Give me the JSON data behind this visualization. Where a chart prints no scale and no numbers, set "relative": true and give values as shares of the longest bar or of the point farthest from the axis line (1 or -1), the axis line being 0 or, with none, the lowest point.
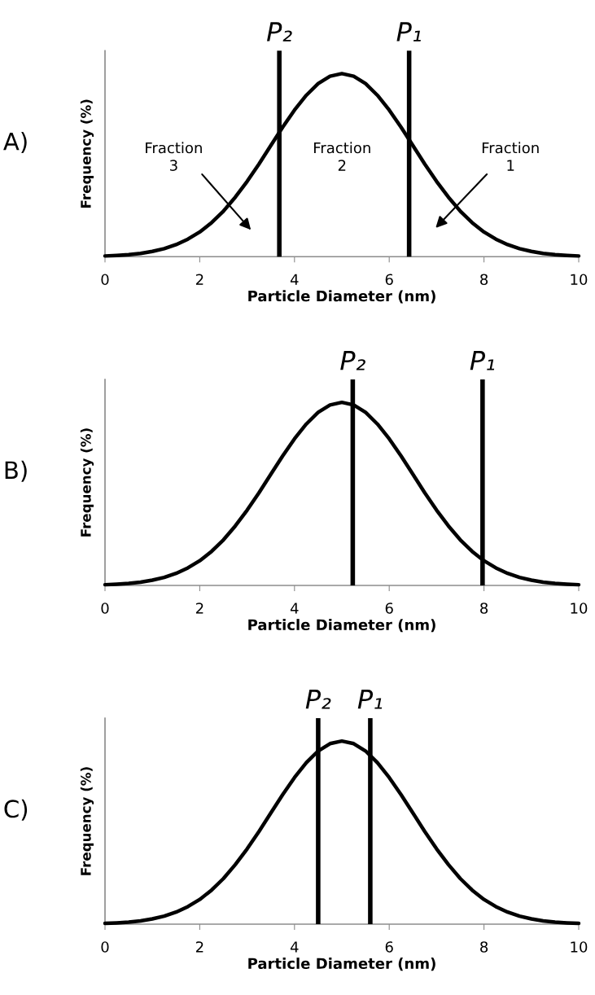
{
  "chart_data": [
    {
      "type": "line",
      "title": "A)",
      "xlabel": "Particle Diameter (nm)",
      "ylabel": "Frequency (%)",
      "relative": true,
      "x": [
        0,
        0.25,
        0.5,
        0.75,
        1,
        1.25,
        1.5,
        1.75,
        2,
        2.25,
        2.5,
        2.75,
        3,
        3.25,
        3.5,
        3.75,
        4,
        4.25,
        4.5,
        4.75,
        5,
        5.25,
        5.5,
        5.75,
        6,
        6.25,
        6.5,
        6.75,
        7,
        7.25,
        7.5,
        7.75,
        8,
        8.25,
        8.5,
        8.75,
        9,
        9.25,
        9.5,
        9.75,
        10
      ],
      "series": [
        {
          "color": "#000000",
          "values": [
            0.004,
            0.007,
            0.011,
            0.018,
            0.029,
            0.044,
            0.066,
            0.096,
            0.135,
            0.186,
            0.249,
            0.325,
            0.411,
            0.506,
            0.607,
            0.707,
            0.801,
            0.882,
            0.946,
            0.986,
            1,
            0.986,
            0.946,
            0.882,
            0.801,
            0.707,
            0.607,
            0.506,
            0.411,
            0.325,
            0.249,
            0.186,
            0.135,
            0.096,
            0.066,
            0.044,
            0.029,
            0.018,
            0.011,
            0.007,
            0.004
          ]
        }
      ],
      "xlim": [
        0,
        10
      ],
      "xticks": [
        0,
        2,
        4,
        6,
        8,
        10
      ],
      "grid": false,
      "legend": false,
      "marker": "none",
      "line_style": "solid",
      "ref_lines": [
        {
          "axis": "x",
          "value": 3.68,
          "label": "P₂",
          "color": "#000000"
        },
        {
          "axis": "x",
          "value": 6.42,
          "label": "P₁",
          "color": "#000000"
        }
      ],
      "annotations": [
        "Fraction\n3",
        "Fraction\n2",
        "Fraction\n1"
      ]
    },
    {
      "type": "line",
      "title": "B)",
      "xlabel": "Particle Diameter (nm)",
      "ylabel": "Frequency (%)",
      "relative": true,
      "x": [
        0,
        0.25,
        0.5,
        0.75,
        1,
        1.25,
        1.5,
        1.75,
        2,
        2.25,
        2.5,
        2.75,
        3,
        3.25,
        3.5,
        3.75,
        4,
        4.25,
        4.5,
        4.75,
        5,
        5.25,
        5.5,
        5.75,
        6,
        6.25,
        6.5,
        6.75,
        7,
        7.25,
        7.5,
        7.75,
        8,
        8.25,
        8.5,
        8.75,
        9,
        9.25,
        9.5,
        9.75,
        10
      ],
      "series": [
        {
          "color": "#000000",
          "values": [
            0.004,
            0.007,
            0.011,
            0.018,
            0.029,
            0.044,
            0.066,
            0.096,
            0.135,
            0.186,
            0.249,
            0.325,
            0.411,
            0.506,
            0.607,
            0.707,
            0.801,
            0.882,
            0.946,
            0.986,
            1,
            0.986,
            0.946,
            0.882,
            0.801,
            0.707,
            0.607,
            0.506,
            0.411,
            0.325,
            0.249,
            0.186,
            0.135,
            0.096,
            0.066,
            0.044,
            0.029,
            0.018,
            0.011,
            0.007,
            0.004
          ]
        }
      ],
      "xlim": [
        0,
        10
      ],
      "xticks": [
        0,
        2,
        4,
        6,
        8,
        10
      ],
      "grid": false,
      "legend": false,
      "marker": "none",
      "line_style": "solid",
      "ref_lines": [
        {
          "axis": "x",
          "value": 5.23,
          "label": "P₂",
          "color": "#000000"
        },
        {
          "axis": "x",
          "value": 7.97,
          "label": "P₁",
          "color": "#000000"
        }
      ]
    },
    {
      "type": "line",
      "title": "C)",
      "xlabel": "Particle Diameter (nm)",
      "ylabel": "Frequency (%)",
      "relative": true,
      "x": [
        0,
        0.25,
        0.5,
        0.75,
        1,
        1.25,
        1.5,
        1.75,
        2,
        2.25,
        2.5,
        2.75,
        3,
        3.25,
        3.5,
        3.75,
        4,
        4.25,
        4.5,
        4.75,
        5,
        5.25,
        5.5,
        5.75,
        6,
        6.25,
        6.5,
        6.75,
        7,
        7.25,
        7.5,
        7.75,
        8,
        8.25,
        8.5,
        8.75,
        9,
        9.25,
        9.5,
        9.75,
        10
      ],
      "series": [
        {
          "color": "#000000",
          "values": [
            0.004,
            0.007,
            0.011,
            0.018,
            0.029,
            0.044,
            0.066,
            0.096,
            0.135,
            0.186,
            0.249,
            0.325,
            0.411,
            0.506,
            0.607,
            0.707,
            0.801,
            0.882,
            0.946,
            0.986,
            1,
            0.986,
            0.946,
            0.882,
            0.801,
            0.707,
            0.607,
            0.506,
            0.411,
            0.325,
            0.249,
            0.186,
            0.135,
            0.096,
            0.066,
            0.044,
            0.029,
            0.018,
            0.011,
            0.007,
            0.004
          ]
        }
      ],
      "xlim": [
        0,
        10
      ],
      "xticks": [
        0,
        2,
        4,
        6,
        8,
        10
      ],
      "grid": false,
      "legend": false,
      "marker": "none",
      "line_style": "solid",
      "ref_lines": [
        {
          "axis": "x",
          "value": 4.5,
          "label": "P₂",
          "color": "#000000"
        },
        {
          "axis": "x",
          "value": 5.6,
          "label": "P₁",
          "color": "#000000"
        }
      ]
    }
  ]
}
